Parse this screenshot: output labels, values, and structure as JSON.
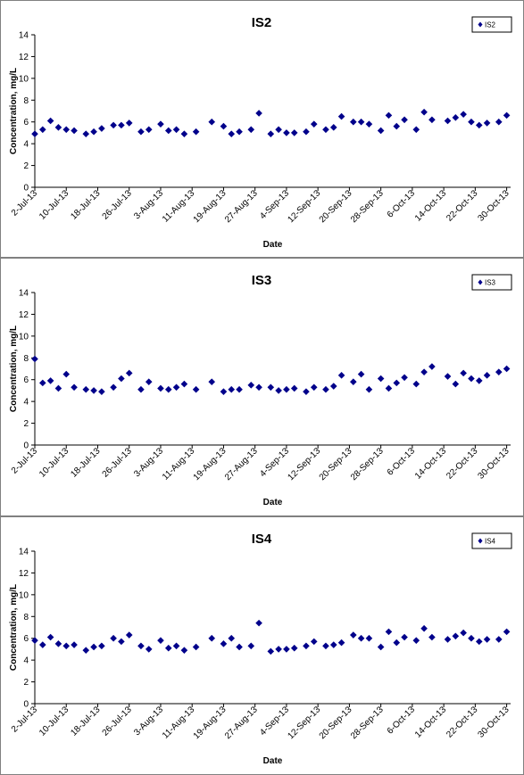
{
  "chart_data": [
    {
      "type": "scatter",
      "title": "IS2",
      "xlabel": "Date",
      "ylabel": "Concentration, mg/L",
      "ylim": [
        0,
        14
      ],
      "yticks": [
        "0",
        "2",
        "4",
        "6",
        "8",
        "10",
        "12",
        "14"
      ],
      "xlim": [
        "2013-07-02",
        "2013-10-31"
      ],
      "xticks": [
        "2-Jul-13",
        "10-Jul-13",
        "18-Jul-13",
        "26-Jul-13",
        "3-Aug-13",
        "11-Aug-13",
        "19-Aug-13",
        "27-Aug-13",
        "4-Sep-13",
        "12-Sep-13",
        "20-Sep-13",
        "28-Sep-13",
        "6-Oct-13",
        "14-Oct-13",
        "22-Oct-13",
        "30-Oct-13"
      ],
      "legend": "top-right",
      "grid": false,
      "marker": "diamond",
      "color": "#00008B",
      "series": [
        {
          "name": "IS2",
          "points": [
            [
              "2013-07-02",
              4.9
            ],
            [
              "2013-07-04",
              5.3
            ],
            [
              "2013-07-06",
              6.1
            ],
            [
              "2013-07-08",
              5.5
            ],
            [
              "2013-07-10",
              5.3
            ],
            [
              "2013-07-12",
              5.2
            ],
            [
              "2013-07-15",
              4.9
            ],
            [
              "2013-07-17",
              5.1
            ],
            [
              "2013-07-19",
              5.4
            ],
            [
              "2013-07-22",
              5.7
            ],
            [
              "2013-07-24",
              5.7
            ],
            [
              "2013-07-26",
              5.9
            ],
            [
              "2013-07-29",
              5.1
            ],
            [
              "2013-07-31",
              5.3
            ],
            [
              "2013-08-03",
              5.8
            ],
            [
              "2013-08-05",
              5.2
            ],
            [
              "2013-08-07",
              5.3
            ],
            [
              "2013-08-09",
              4.9
            ],
            [
              "2013-08-12",
              5.1
            ],
            [
              "2013-08-16",
              6.0
            ],
            [
              "2013-08-19",
              5.6
            ],
            [
              "2013-08-21",
              4.9
            ],
            [
              "2013-08-23",
              5.1
            ],
            [
              "2013-08-26",
              5.3
            ],
            [
              "2013-08-28",
              6.8
            ],
            [
              "2013-08-31",
              4.9
            ],
            [
              "2013-09-02",
              5.3
            ],
            [
              "2013-09-04",
              5.0
            ],
            [
              "2013-09-06",
              5.0
            ],
            [
              "2013-09-09",
              5.1
            ],
            [
              "2013-09-11",
              5.8
            ],
            [
              "2013-09-14",
              5.3
            ],
            [
              "2013-09-16",
              5.5
            ],
            [
              "2013-09-18",
              6.5
            ],
            [
              "2013-09-21",
              6.0
            ],
            [
              "2013-09-23",
              6.0
            ],
            [
              "2013-09-25",
              5.8
            ],
            [
              "2013-09-28",
              5.2
            ],
            [
              "2013-09-30",
              6.6
            ],
            [
              "2013-10-02",
              5.6
            ],
            [
              "2013-10-04",
              6.2
            ],
            [
              "2013-10-07",
              5.3
            ],
            [
              "2013-10-09",
              6.9
            ],
            [
              "2013-10-11",
              6.2
            ],
            [
              "2013-10-15",
              6.1
            ],
            [
              "2013-10-17",
              6.4
            ],
            [
              "2013-10-19",
              6.7
            ],
            [
              "2013-10-21",
              6.0
            ],
            [
              "2013-10-23",
              5.7
            ],
            [
              "2013-10-25",
              5.9
            ],
            [
              "2013-10-28",
              6.0
            ],
            [
              "2013-10-30",
              6.6
            ]
          ]
        }
      ]
    },
    {
      "type": "scatter",
      "title": "IS3",
      "xlabel": "Date",
      "ylabel": "Concentration, mg/L",
      "ylim": [
        0,
        14
      ],
      "yticks": [
        "0",
        "2",
        "4",
        "6",
        "8",
        "10",
        "12",
        "14"
      ],
      "xlim": [
        "2013-07-02",
        "2013-10-31"
      ],
      "xticks": [
        "2-Jul-13",
        "10-Jul-13",
        "18-Jul-13",
        "26-Jul-13",
        "3-Aug-13",
        "11-Aug-13",
        "19-Aug-13",
        "27-Aug-13",
        "4-Sep-13",
        "12-Sep-13",
        "20-Sep-13",
        "28-Sep-13",
        "6-Oct-13",
        "14-Oct-13",
        "22-Oct-13",
        "30-Oct-13"
      ],
      "legend": "top-right",
      "grid": false,
      "marker": "diamond",
      "color": "#00008B",
      "series": [
        {
          "name": "IS3",
          "points": [
            [
              "2013-07-02",
              7.9
            ],
            [
              "2013-07-04",
              5.7
            ],
            [
              "2013-07-06",
              5.9
            ],
            [
              "2013-07-08",
              5.2
            ],
            [
              "2013-07-10",
              6.5
            ],
            [
              "2013-07-12",
              5.3
            ],
            [
              "2013-07-15",
              5.1
            ],
            [
              "2013-07-17",
              5.0
            ],
            [
              "2013-07-19",
              4.9
            ],
            [
              "2013-07-22",
              5.3
            ],
            [
              "2013-07-24",
              6.1
            ],
            [
              "2013-07-26",
              6.6
            ],
            [
              "2013-07-29",
              5.1
            ],
            [
              "2013-07-31",
              5.8
            ],
            [
              "2013-08-03",
              5.2
            ],
            [
              "2013-08-05",
              5.1
            ],
            [
              "2013-08-07",
              5.3
            ],
            [
              "2013-08-09",
              5.6
            ],
            [
              "2013-08-12",
              5.1
            ],
            [
              "2013-08-16",
              5.8
            ],
            [
              "2013-08-19",
              4.9
            ],
            [
              "2013-08-21",
              5.1
            ],
            [
              "2013-08-23",
              5.1
            ],
            [
              "2013-08-26",
              5.5
            ],
            [
              "2013-08-28",
              5.3
            ],
            [
              "2013-08-31",
              5.3
            ],
            [
              "2013-09-02",
              5.0
            ],
            [
              "2013-09-04",
              5.1
            ],
            [
              "2013-09-06",
              5.2
            ],
            [
              "2013-09-09",
              4.9
            ],
            [
              "2013-09-11",
              5.3
            ],
            [
              "2013-09-14",
              5.1
            ],
            [
              "2013-09-16",
              5.4
            ],
            [
              "2013-09-18",
              6.4
            ],
            [
              "2013-09-21",
              5.8
            ],
            [
              "2013-09-23",
              6.5
            ],
            [
              "2013-09-25",
              5.1
            ],
            [
              "2013-09-28",
              6.1
            ],
            [
              "2013-09-30",
              5.2
            ],
            [
              "2013-10-02",
              5.7
            ],
            [
              "2013-10-04",
              6.2
            ],
            [
              "2013-10-07",
              5.6
            ],
            [
              "2013-10-09",
              6.7
            ],
            [
              "2013-10-11",
              7.2
            ],
            [
              "2013-10-15",
              6.3
            ],
            [
              "2013-10-17",
              5.6
            ],
            [
              "2013-10-19",
              6.6
            ],
            [
              "2013-10-21",
              6.1
            ],
            [
              "2013-10-23",
              5.9
            ],
            [
              "2013-10-25",
              6.4
            ],
            [
              "2013-10-28",
              6.7
            ],
            [
              "2013-10-30",
              7.0
            ]
          ]
        }
      ]
    },
    {
      "type": "scatter",
      "title": "IS4",
      "xlabel": "Date",
      "ylabel": "Concentration, mg/L",
      "ylim": [
        0,
        14
      ],
      "yticks": [
        "0",
        "2",
        "4",
        "6",
        "8",
        "10",
        "12",
        "14"
      ],
      "xlim": [
        "2013-07-02",
        "2013-10-31"
      ],
      "xticks": [
        "2-Jul-13",
        "10-Jul-13",
        "18-Jul-13",
        "26-Jul-13",
        "3-Aug-13",
        "11-Aug-13",
        "19-Aug-13",
        "27-Aug-13",
        "4-Sep-13",
        "12-Sep-13",
        "20-Sep-13",
        "28-Sep-13",
        "6-Oct-13",
        "14-Oct-13",
        "22-Oct-13",
        "30-Oct-13"
      ],
      "legend": "top-right",
      "grid": false,
      "marker": "diamond",
      "color": "#00008B",
      "series": [
        {
          "name": "IS4",
          "points": [
            [
              "2013-07-02",
              5.8
            ],
            [
              "2013-07-04",
              5.4
            ],
            [
              "2013-07-06",
              6.1
            ],
            [
              "2013-07-08",
              5.5
            ],
            [
              "2013-07-10",
              5.3
            ],
            [
              "2013-07-12",
              5.4
            ],
            [
              "2013-07-15",
              4.9
            ],
            [
              "2013-07-17",
              5.2
            ],
            [
              "2013-07-19",
              5.3
            ],
            [
              "2013-07-22",
              6.0
            ],
            [
              "2013-07-24",
              5.7
            ],
            [
              "2013-07-26",
              6.3
            ],
            [
              "2013-07-29",
              5.3
            ],
            [
              "2013-07-31",
              5.0
            ],
            [
              "2013-08-03",
              5.8
            ],
            [
              "2013-08-05",
              5.1
            ],
            [
              "2013-08-07",
              5.3
            ],
            [
              "2013-08-09",
              4.9
            ],
            [
              "2013-08-12",
              5.2
            ],
            [
              "2013-08-16",
              6.0
            ],
            [
              "2013-08-19",
              5.5
            ],
            [
              "2013-08-21",
              6.0
            ],
            [
              "2013-08-23",
              5.2
            ],
            [
              "2013-08-26",
              5.3
            ],
            [
              "2013-08-28",
              7.4
            ],
            [
              "2013-08-31",
              4.8
            ],
            [
              "2013-09-02",
              5.0
            ],
            [
              "2013-09-04",
              5.0
            ],
            [
              "2013-09-06",
              5.1
            ],
            [
              "2013-09-09",
              5.3
            ],
            [
              "2013-09-11",
              5.7
            ],
            [
              "2013-09-14",
              5.3
            ],
            [
              "2013-09-16",
              5.4
            ],
            [
              "2013-09-18",
              5.6
            ],
            [
              "2013-09-21",
              6.3
            ],
            [
              "2013-09-23",
              6.0
            ],
            [
              "2013-09-25",
              6.0
            ],
            [
              "2013-09-28",
              5.2
            ],
            [
              "2013-09-30",
              6.6
            ],
            [
              "2013-10-02",
              5.6
            ],
            [
              "2013-10-04",
              6.1
            ],
            [
              "2013-10-07",
              5.8
            ],
            [
              "2013-10-09",
              6.9
            ],
            [
              "2013-10-11",
              6.1
            ],
            [
              "2013-10-15",
              5.9
            ],
            [
              "2013-10-17",
              6.2
            ],
            [
              "2013-10-19",
              6.5
            ],
            [
              "2013-10-21",
              6.0
            ],
            [
              "2013-10-23",
              5.7
            ],
            [
              "2013-10-25",
              5.9
            ],
            [
              "2013-10-28",
              5.9
            ],
            [
              "2013-10-30",
              6.6
            ]
          ]
        }
      ]
    }
  ]
}
